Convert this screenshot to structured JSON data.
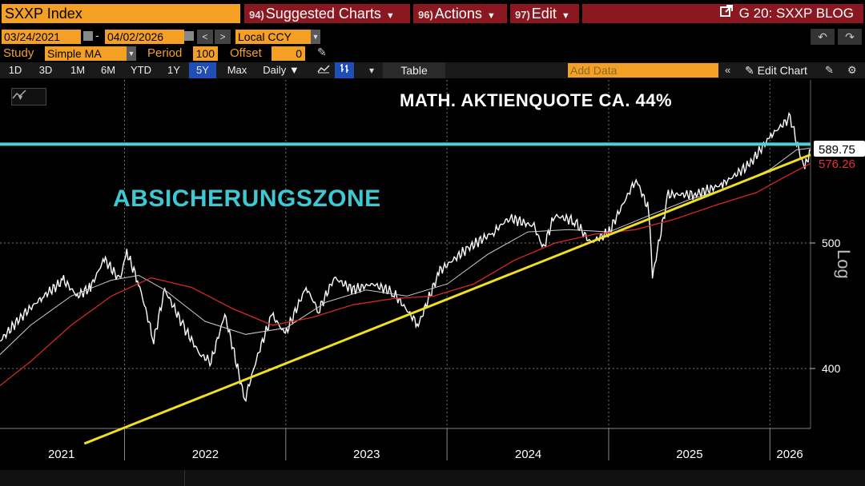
{
  "header": {
    "ticker": "SXXP Index",
    "menus": [
      {
        "num": "94)",
        "label": "Suggested Charts"
      },
      {
        "num": "96)",
        "label": "Actions"
      },
      {
        "num": "97)",
        "label": "Edit"
      }
    ],
    "blog": "G 20: SXXP BLOG"
  },
  "range": {
    "start": "03/24/2021",
    "sep": "-",
    "end": "04/02/2026",
    "currency": "Local CCY"
  },
  "study": {
    "label": "Study",
    "value": "Simple MA",
    "period_label": "Period",
    "period": "100",
    "offset_label": "Offset",
    "offset": "0"
  },
  "toolbar": {
    "periods": [
      "1D",
      "3D",
      "1M",
      "6M",
      "YTD",
      "1Y",
      "5Y",
      "Max"
    ],
    "active_period": "5Y",
    "frequency": "Daily",
    "table": "Table",
    "add_data_placeholder": "Add Data",
    "edit_chart": "Edit Chart"
  },
  "chart_data": {
    "type": "line",
    "scale": "log",
    "scale_label": "Log",
    "x_labels": [
      "2021",
      "2022",
      "2023",
      "2024",
      "2025",
      "2026"
    ],
    "y_ticks": [
      400,
      500
    ],
    "price_labels": [
      {
        "value": "589.75",
        "color": "#ffffff"
      },
      {
        "value": "576.26",
        "color": "#e8303a"
      }
    ],
    "annotations": {
      "title": "MATH. AKTIENQUOTE CA. 44%",
      "zone": "ABSICHERUNGSZONE"
    },
    "hline": {
      "value": 596,
      "color": "#4fd0d8"
    },
    "trendline": {
      "from": [
        "2021-10-01",
        350
      ],
      "to": [
        "2026-04-02",
        585
      ],
      "color": "#f0e020"
    },
    "series": [
      {
        "name": "SXXP Index",
        "color": "#ffffff",
        "points": [
          [
            "2021-03-24",
            420
          ],
          [
            "2021-05-15",
            440
          ],
          [
            "2021-07-01",
            455
          ],
          [
            "2021-08-15",
            468
          ],
          [
            "2021-09-15",
            455
          ],
          [
            "2021-10-15",
            462
          ],
          [
            "2021-11-15",
            486
          ],
          [
            "2021-12-20",
            468
          ],
          [
            "2022-01-05",
            492
          ],
          [
            "2022-02-01",
            465
          ],
          [
            "2022-03-07",
            420
          ],
          [
            "2022-04-01",
            460
          ],
          [
            "2022-05-15",
            430
          ],
          [
            "2022-06-20",
            410
          ],
          [
            "2022-07-15",
            405
          ],
          [
            "2022-08-15",
            440
          ],
          [
            "2022-09-29",
            378
          ],
          [
            "2022-10-31",
            412
          ],
          [
            "2022-11-30",
            440
          ],
          [
            "2022-12-30",
            425
          ],
          [
            "2023-02-15",
            462
          ],
          [
            "2023-03-15",
            443
          ],
          [
            "2023-04-20",
            470
          ],
          [
            "2023-06-01",
            460
          ],
          [
            "2023-07-15",
            465
          ],
          [
            "2023-08-31",
            458
          ],
          [
            "2023-10-27",
            432
          ],
          [
            "2023-12-15",
            476
          ],
          [
            "2024-02-15",
            495
          ],
          [
            "2024-04-15",
            510
          ],
          [
            "2024-05-20",
            523
          ],
          [
            "2024-07-15",
            515
          ],
          [
            "2024-08-05",
            495
          ],
          [
            "2024-08-30",
            525
          ],
          [
            "2024-10-15",
            520
          ],
          [
            "2024-11-20",
            500
          ],
          [
            "2025-01-01",
            510
          ],
          [
            "2025-03-03",
            560
          ],
          [
            "2025-04-01",
            530
          ],
          [
            "2025-04-09",
            470
          ],
          [
            "2025-05-15",
            545
          ],
          [
            "2025-07-15",
            545
          ],
          [
            "2025-09-15",
            555
          ],
          [
            "2025-11-15",
            575
          ],
          [
            "2026-01-02",
            605
          ],
          [
            "2026-02-15",
            625
          ],
          [
            "2026-03-10",
            583
          ],
          [
            "2026-03-20",
            572
          ],
          [
            "2026-04-02",
            590
          ]
        ]
      },
      {
        "name": "MA (White)",
        "color": "#cccccc",
        "points": [
          [
            "2021-03-24",
            410
          ],
          [
            "2021-06-01",
            432
          ],
          [
            "2021-09-01",
            455
          ],
          [
            "2021-12-01",
            468
          ],
          [
            "2022-02-01",
            472
          ],
          [
            "2022-04-01",
            460
          ],
          [
            "2022-07-01",
            435
          ],
          [
            "2022-10-01",
            425
          ],
          [
            "2023-01-01",
            430
          ],
          [
            "2023-04-01",
            450
          ],
          [
            "2023-07-01",
            460
          ],
          [
            "2023-10-01",
            455
          ],
          [
            "2024-01-01",
            465
          ],
          [
            "2024-04-01",
            490
          ],
          [
            "2024-07-01",
            510
          ],
          [
            "2024-10-01",
            512
          ],
          [
            "2025-01-01",
            510
          ],
          [
            "2025-04-01",
            525
          ],
          [
            "2025-07-01",
            540
          ],
          [
            "2025-10-01",
            552
          ],
          [
            "2026-01-01",
            570
          ],
          [
            "2026-03-01",
            590
          ],
          [
            "2026-04-02",
            592
          ]
        ]
      },
      {
        "name": "MA (Red)",
        "color": "#d62828",
        "points": [
          [
            "2021-03-24",
            388
          ],
          [
            "2021-06-01",
            405
          ],
          [
            "2021-09-01",
            432
          ],
          [
            "2021-12-01",
            455
          ],
          [
            "2022-03-01",
            470
          ],
          [
            "2022-06-01",
            462
          ],
          [
            "2022-09-01",
            445
          ],
          [
            "2022-12-01",
            432
          ],
          [
            "2023-03-01",
            438
          ],
          [
            "2023-06-01",
            448
          ],
          [
            "2023-09-01",
            453
          ],
          [
            "2023-12-01",
            455
          ],
          [
            "2024-03-01",
            465
          ],
          [
            "2024-06-01",
            485
          ],
          [
            "2024-09-01",
            500
          ],
          [
            "2024-12-01",
            508
          ],
          [
            "2025-03-01",
            512
          ],
          [
            "2025-06-01",
            522
          ],
          [
            "2025-09-01",
            535
          ],
          [
            "2025-12-01",
            547
          ],
          [
            "2026-02-01",
            562
          ],
          [
            "2026-04-02",
            576
          ]
        ]
      }
    ]
  }
}
